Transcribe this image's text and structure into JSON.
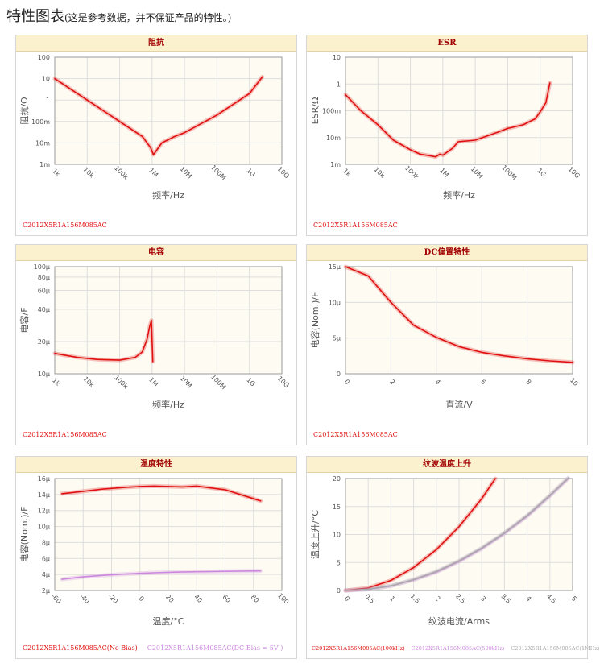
{
  "heading": {
    "title": "特性图表",
    "note": "(这是参考数据，并不保证产品的特性。)"
  },
  "colors": {
    "red": "#e01010",
    "pink": "#cc88dd",
    "gray": "#aaaaaa",
    "title_bg": "#fbf1cf",
    "title_text": "#a00000"
  },
  "chart_data": [
    {
      "id": "impedance",
      "type": "line",
      "title": "阻抗",
      "xlabel": "频率/Hz",
      "ylabel": "阻抗/Ω",
      "xscale": "log",
      "yscale": "log",
      "xlim": [
        1000,
        10000000000
      ],
      "ylim": [
        0.001,
        100
      ],
      "xticks": [
        1000,
        10000,
        100000,
        1000000,
        10000000,
        100000000,
        1000000000,
        10000000000
      ],
      "xtick_labels": [
        "1k",
        "10k",
        "100k",
        "1M",
        "10M",
        "100M",
        "1G",
        "10G"
      ],
      "yticks": [
        0.001,
        0.01,
        0.1,
        1,
        10,
        100
      ],
      "ytick_labels": [
        "1m",
        "10m",
        "100m",
        "1",
        "10",
        "100"
      ],
      "legend": [
        "C2012X5R1A156M085AC"
      ],
      "series": [
        {
          "name": "C2012X5R1A156M085AC",
          "color": "#e01010",
          "x": [
            1000,
            10000,
            100000,
            500000,
            900000,
            1100000,
            1300000,
            2000000,
            5000000,
            10000000,
            100000000,
            1000000000,
            2500000000
          ],
          "y": [
            10,
            1,
            0.1,
            0.02,
            0.006,
            0.0028,
            0.004,
            0.01,
            0.02,
            0.03,
            0.2,
            2,
            12
          ]
        }
      ]
    },
    {
      "id": "esr",
      "type": "line",
      "title": "ESR",
      "xlabel": "频率/Hz",
      "ylabel": "ESR/Ω",
      "xscale": "log",
      "yscale": "log",
      "xlim": [
        1000,
        10000000000
      ],
      "ylim": [
        0.001,
        10
      ],
      "xticks": [
        1000,
        10000,
        100000,
        1000000,
        10000000,
        100000000,
        1000000000,
        10000000000
      ],
      "xtick_labels": [
        "1k",
        "10k",
        "100k",
        "1M",
        "10M",
        "100M",
        "1G",
        "10G"
      ],
      "yticks": [
        0.001,
        0.01,
        0.1,
        1,
        10
      ],
      "ytick_labels": [
        "1m",
        "10m",
        "100m",
        "1",
        "10"
      ],
      "legend": [
        "C2012X5R1A156M085AC"
      ],
      "series": [
        {
          "name": "C2012X5R1A156M085AC",
          "color": "#e01010",
          "x": [
            1000,
            3000,
            10000,
            30000,
            100000,
            200000,
            400000,
            600000,
            800000,
            1000000,
            2000000,
            3000000,
            10000000,
            50000000,
            100000000,
            300000000,
            700000000,
            1000000000,
            1500000000,
            2000000000
          ],
          "y": [
            0.4,
            0.1,
            0.03,
            0.008,
            0.0035,
            0.0024,
            0.0021,
            0.0019,
            0.0024,
            0.0022,
            0.004,
            0.007,
            0.008,
            0.016,
            0.022,
            0.03,
            0.05,
            0.09,
            0.2,
            1.1
          ]
        }
      ]
    },
    {
      "id": "capacitance",
      "type": "line",
      "title": "电容",
      "xlabel": "频率/Hz",
      "ylabel": "电容/F",
      "xscale": "log",
      "yscale": "log",
      "xlim": [
        1000,
        10000000000
      ],
      "ylim": [
        1e-05,
        0.0001
      ],
      "xticks": [
        1000,
        10000,
        100000,
        1000000,
        10000000,
        100000000,
        1000000000,
        10000000000
      ],
      "xtick_labels": [
        "1k",
        "10k",
        "100k",
        "1M",
        "10M",
        "100M",
        "1G",
        "10G"
      ],
      "yticks": [
        1e-05,
        2e-05,
        4e-05,
        6e-05,
        8e-05,
        0.0001
      ],
      "ytick_labels": [
        "10μ",
        "20μ",
        "40μ",
        "60μ",
        "80μ",
        "100μ"
      ],
      "legend": [
        "C2012X5R1A156M085AC"
      ],
      "series": [
        {
          "name": "C2012X5R1A156M085AC",
          "color": "#e01010",
          "x": [
            1000,
            5000,
            20000,
            100000,
            300000,
            500000,
            700000,
            850000,
            950000,
            1050000
          ],
          "y": [
            1.55e-05,
            1.42e-05,
            1.36e-05,
            1.34e-05,
            1.42e-05,
            1.6e-05,
            2.1e-05,
            2.8e-05,
            3.15e-05,
            1.3e-05
          ]
        }
      ]
    },
    {
      "id": "dc_bias",
      "type": "line",
      "title": "DC偏置特性",
      "xlabel": "直流/V",
      "ylabel": "电容(Nom.)/F",
      "xscale": "linear",
      "yscale": "linear",
      "xlim": [
        0,
        10
      ],
      "ylim": [
        0,
        15
      ],
      "xticks": [
        0,
        2,
        4,
        6,
        8,
        10
      ],
      "xtick_labels": [
        "0",
        "2",
        "4",
        "6",
        "8",
        "10"
      ],
      "yticks": [
        0,
        5,
        10,
        15
      ],
      "ytick_labels": [
        "0",
        "5μ",
        "10μ",
        "15μ"
      ],
      "legend": [
        "C2012X5R1A156M085AC"
      ],
      "series": [
        {
          "name": "C2012X5R1A156M085AC",
          "color": "#e01010",
          "x": [
            0,
            1,
            2,
            3,
            4,
            5,
            6,
            7,
            8,
            9,
            10
          ],
          "y": [
            15,
            13.7,
            10,
            6.8,
            5.1,
            3.8,
            3.0,
            2.5,
            2.1,
            1.8,
            1.6
          ]
        }
      ]
    },
    {
      "id": "temperature",
      "type": "line",
      "title": "温度特性",
      "xlabel": "温度/°C",
      "ylabel": "电容(Nom.)/F",
      "xscale": "linear",
      "yscale": "linear",
      "xlim": [
        -60,
        100
      ],
      "ylim": [
        2,
        16
      ],
      "xticks": [
        -60,
        -40,
        -20,
        0,
        20,
        40,
        60,
        80,
        100
      ],
      "xtick_labels": [
        "-60",
        "-40",
        "-20",
        "0",
        "20",
        "40",
        "60",
        "80",
        "100"
      ],
      "yticks": [
        2,
        4,
        6,
        8,
        10,
        12,
        14,
        16
      ],
      "ytick_labels": [
        "2μ",
        "4μ",
        "6μ",
        "8μ",
        "10μ",
        "12μ",
        "14μ",
        "16μ"
      ],
      "legend": [
        "C2012X5R1A156M085AC(No Bias)",
        "C2012X5R1A156M085AC(DC Bias = 5V )"
      ],
      "series": [
        {
          "name": "C2012X5R1A156M085AC(No Bias)",
          "color": "#e01010",
          "x": [
            -55,
            -40,
            -25,
            -10,
            0,
            10,
            20,
            30,
            40,
            60,
            85
          ],
          "y": [
            14.1,
            14.4,
            14.7,
            14.9,
            15.0,
            15.05,
            15.0,
            14.95,
            15.05,
            14.6,
            13.2
          ]
        },
        {
          "name": "C2012X5R1A156M085AC(DC Bias = 5V )",
          "color": "#cc88dd",
          "x": [
            -55,
            -40,
            -25,
            -10,
            0,
            10,
            25,
            40,
            60,
            85
          ],
          "y": [
            3.4,
            3.7,
            3.9,
            4.05,
            4.15,
            4.22,
            4.3,
            4.35,
            4.4,
            4.45
          ]
        }
      ]
    },
    {
      "id": "ripple",
      "type": "line",
      "title": "纹波温度上升",
      "xlabel": "纹波电流/Arms",
      "ylabel": "温度上升/°C",
      "xscale": "linear",
      "yscale": "linear",
      "xlim": [
        0,
        5
      ],
      "ylim": [
        0,
        20
      ],
      "xticks": [
        0,
        0.5,
        1,
        1.5,
        2,
        2.5,
        3,
        3.5,
        4,
        4.5,
        5
      ],
      "xtick_labels": [
        "0",
        "0.5",
        "1",
        "1.5",
        "2",
        "2.5",
        "3",
        "3.5",
        "4",
        "4.5",
        "5"
      ],
      "yticks": [
        0,
        5,
        10,
        15,
        20
      ],
      "ytick_labels": [
        "0",
        "5",
        "10",
        "15",
        "20"
      ],
      "legend": [
        "C2012X5R1A156M085AC(100kHz)",
        "C2012X5R1A156M085AC(500kHz)",
        "C2012X5R1A156M085AC(1MHz)"
      ],
      "series": [
        {
          "name": "C2012X5R1A156M085AC(100kHz)",
          "color": "#e01010",
          "x": [
            0,
            0.5,
            1,
            1.5,
            2,
            2.5,
            3,
            3.3
          ],
          "y": [
            0,
            0.45,
            1.8,
            4.1,
            7.3,
            11.4,
            16.4,
            20
          ]
        },
        {
          "name": "C2012X5R1A156M085AC(500kHz)",
          "color": "#cc88dd",
          "x": [
            0,
            0.5,
            1,
            1.5,
            2,
            2.5,
            3,
            3.5,
            4,
            4.5,
            4.9
          ],
          "y": [
            0,
            0.2,
            0.8,
            1.9,
            3.3,
            5.2,
            7.5,
            10.2,
            13.3,
            16.9,
            20
          ]
        },
        {
          "name": "C2012X5R1A156M085AC(1MHz)",
          "color": "#aaaaaa",
          "x": [
            0,
            0.5,
            1,
            1.5,
            2,
            2.5,
            3,
            3.5,
            4,
            4.5,
            4.9
          ],
          "y": [
            0,
            0.22,
            0.85,
            1.95,
            3.4,
            5.3,
            7.6,
            10.3,
            13.4,
            17.0,
            20.1
          ]
        }
      ]
    }
  ]
}
